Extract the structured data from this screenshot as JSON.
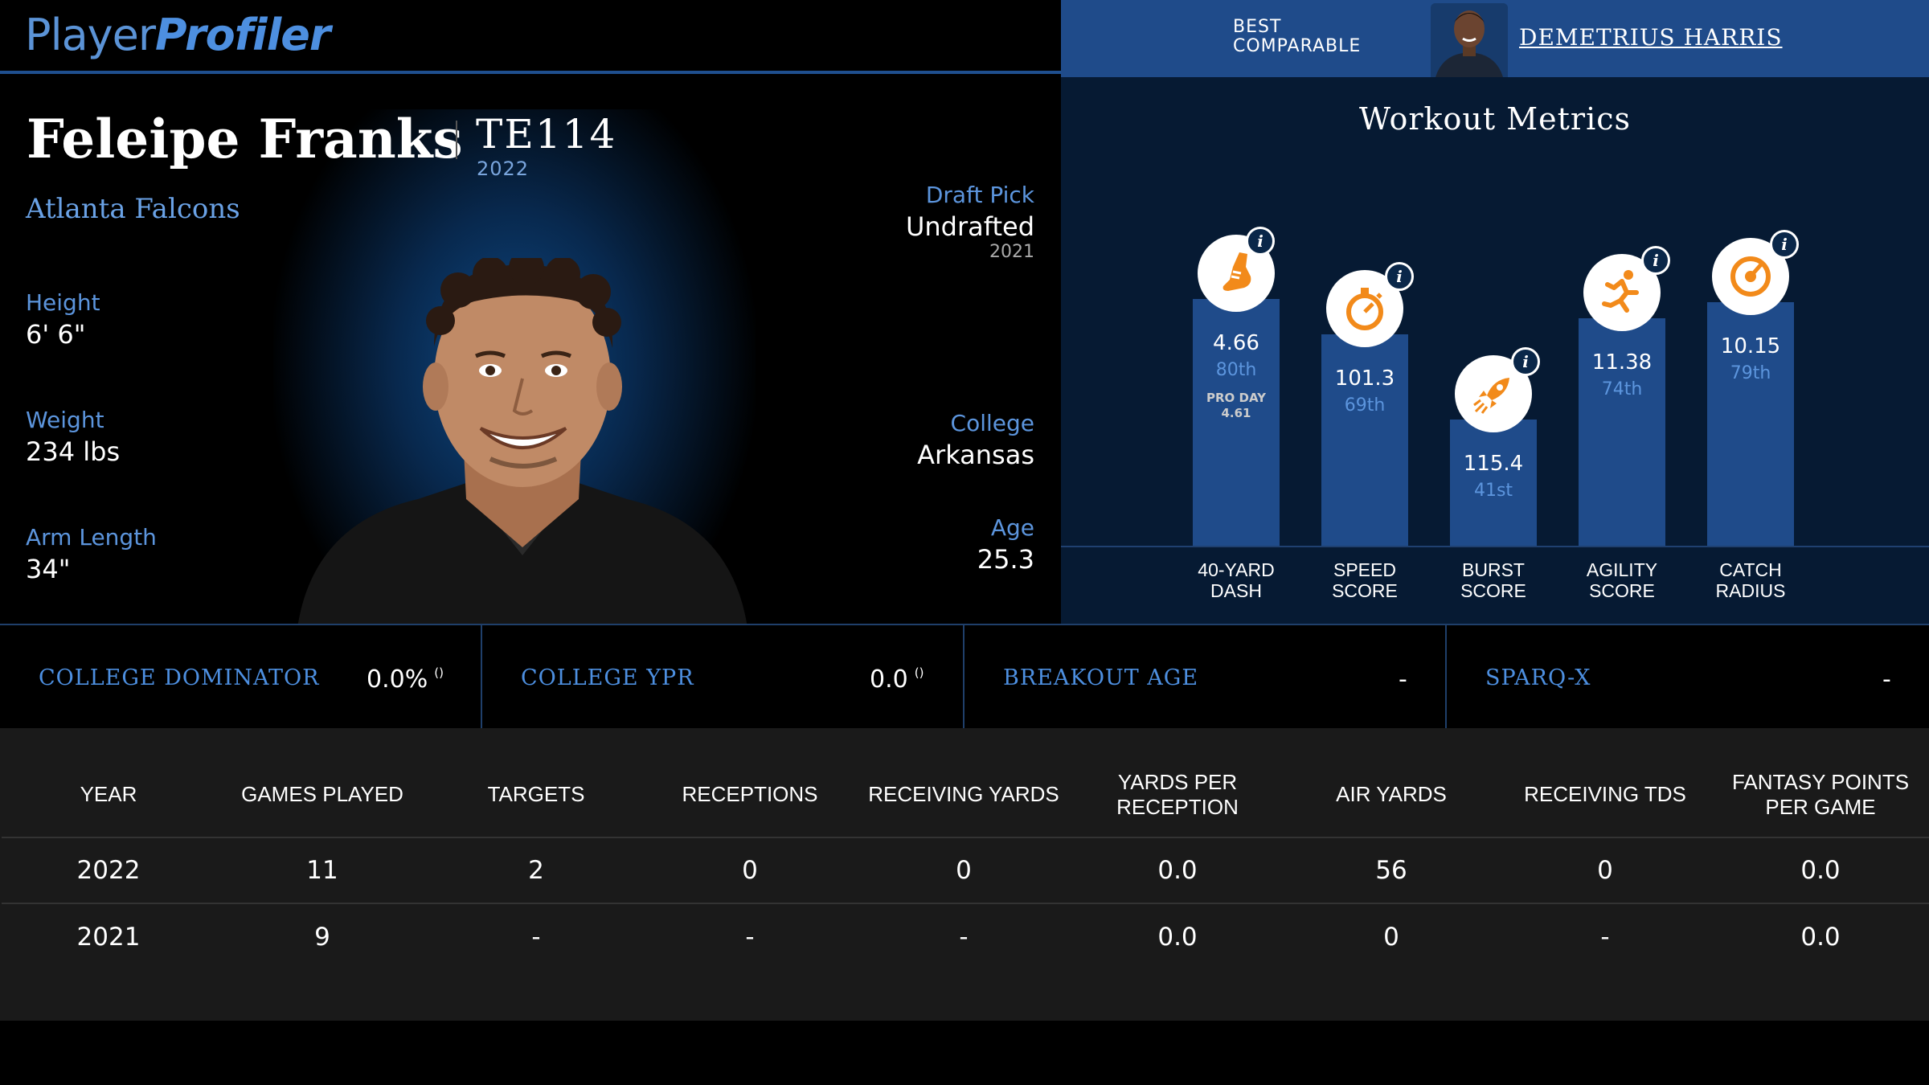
{
  "logo": {
    "part1": "Player",
    "part2": "Profiler"
  },
  "comparable": {
    "label_line1": "BEST",
    "label_line2": "COMPARABLE",
    "name": "DEMETRIUS HARRIS"
  },
  "player": {
    "name": "Feleipe Franks",
    "position_rank": "TE114",
    "year": "2022",
    "team": "Atlanta Falcons",
    "left_stats": [
      {
        "label": "Height",
        "value": "6' 6\""
      },
      {
        "label": "Weight",
        "value": "234 lbs"
      },
      {
        "label": "Arm Length",
        "value": "34\""
      }
    ],
    "right_stats": [
      {
        "label": "Draft Pick",
        "value": "Undrafted",
        "sub": "2021"
      },
      {
        "label": "College",
        "value": "Arkansas",
        "sub": ""
      },
      {
        "label": "Age",
        "value": "25.3",
        "sub": ""
      }
    ]
  },
  "workout": {
    "title": "Workout Metrics",
    "info_glyph": "i",
    "metrics": [
      {
        "value": "4.66",
        "percentile": "80th",
        "pro_day_label": "PRO DAY",
        "pro_day_value": "4.61",
        "caption1": "40-YARD",
        "caption2": "DASH",
        "icon": "shoe-icon",
        "percentile_num": 80
      },
      {
        "value": "101.3",
        "percentile": "69th",
        "caption1": "SPEED",
        "caption2": "SCORE",
        "icon": "stopwatch-icon",
        "percentile_num": 69
      },
      {
        "value": "115.4",
        "percentile": "41st",
        "caption1": "BURST",
        "caption2": "SCORE",
        "icon": "rocket-icon",
        "percentile_num": 41
      },
      {
        "value": "11.38",
        "percentile": "74th",
        "caption1": "AGILITY",
        "caption2": "SCORE",
        "icon": "runner-icon",
        "percentile_num": 74
      },
      {
        "value": "10.15",
        "percentile": "79th",
        "caption1": "CATCH",
        "caption2": "RADIUS",
        "icon": "target-icon",
        "percentile_num": 79
      }
    ]
  },
  "college_metrics": [
    {
      "label": "COLLEGE DOMINATOR",
      "value": "0.0%",
      "rank": "()"
    },
    {
      "label": "COLLEGE YPR",
      "value": "0.0",
      "rank": "()"
    },
    {
      "label": "BREAKOUT AGE",
      "value": "-",
      "rank": ""
    },
    {
      "label": "SPARQ-X",
      "value": "-",
      "rank": ""
    }
  ],
  "stats_table": {
    "headers": [
      "YEAR",
      "GAMES PLAYED",
      "TARGETS",
      "RECEPTIONS",
      "RECEIVING YARDS",
      "YARDS PER RECEPTION",
      "AIR YARDS",
      "RECEIVING TDS",
      "FANTASY POINTS PER GAME"
    ],
    "rows": [
      [
        "2022",
        "11",
        "2",
        "0",
        "0",
        "0.0",
        "56",
        "0",
        "0.0"
      ],
      [
        "2021",
        "9",
        "-",
        "-",
        "-",
        "0.0",
        "0",
        "-",
        "0.0"
      ]
    ]
  },
  "colors": {
    "accent": "#4d8fe0",
    "bar": "#1f4b8a",
    "icon_orange": "#f28a1a",
    "panel": "#061a33"
  }
}
